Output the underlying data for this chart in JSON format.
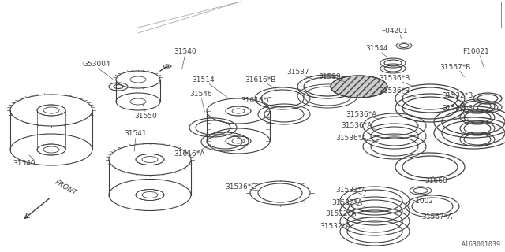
{
  "bg_color": "#ffffff",
  "line_color": "#404040",
  "label_color": "#404040",
  "watermark": "A163001039",
  "figsize": [
    6.4,
    3.2
  ],
  "dpi": 100,
  "xlim": [
    0,
    640
  ],
  "ylim": [
    0,
    320
  ]
}
